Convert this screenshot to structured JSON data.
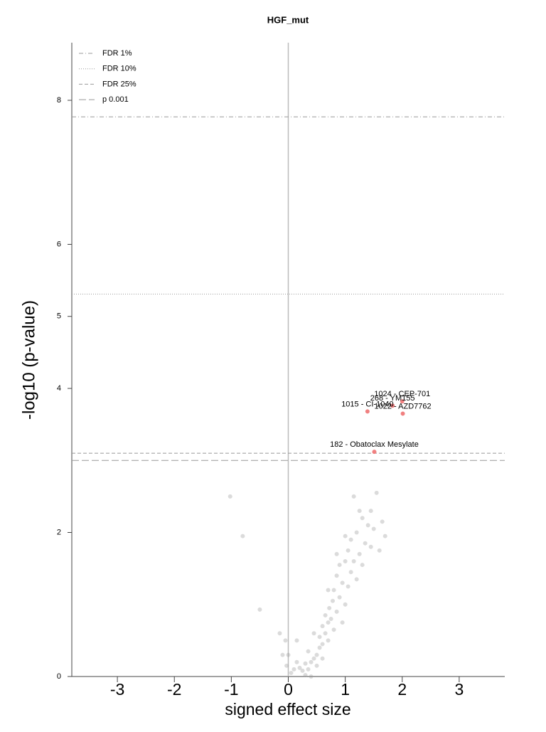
{
  "chart_data": {
    "type": "scatter",
    "title": "HGF_mut",
    "xlabel": "signed effect size",
    "ylabel": "-log10 (p-value)",
    "xlim": [
      -3.8,
      3.8
    ],
    "ylim": [
      0,
      8.8
    ],
    "xticks": [
      -3,
      -2,
      -1,
      0,
      1,
      2,
      3
    ],
    "yticks": [
      0,
      2,
      4,
      5,
      6,
      8
    ],
    "point_color": "#999999",
    "highlight_color": "#f08080",
    "thresholds": [
      {
        "label": "FDR 1%",
        "value": 7.77,
        "dash": "6,3,1,3"
      },
      {
        "label": "FDR 10%",
        "value": 5.31,
        "dash": "1,2"
      },
      {
        "label": "FDR 25%",
        "value": 3.1,
        "dash": "5,3"
      },
      {
        "label": "p 0.001",
        "value": 3.0,
        "dash": "10,4"
      }
    ],
    "highlighted": {
      "labels": [
        "1024 - CEP-701",
        "268 - YM155",
        "1015 - CI-1040",
        "1022 - AZD7762",
        "182 - Obatoclax Mesylate"
      ],
      "x": [
        2.0,
        1.83,
        1.39,
        2.01,
        1.51
      ],
      "y": [
        3.82,
        3.76,
        3.68,
        3.65,
        3.12
      ]
    },
    "points": {
      "x": [
        -1.02,
        -0.8,
        -0.5,
        -0.1,
        -0.05,
        -0.03,
        0.05,
        0.1,
        0.15,
        0.2,
        0.25,
        0.3,
        0.35,
        0.4,
        0.45,
        0.5,
        0.5,
        0.55,
        0.55,
        0.6,
        0.6,
        0.65,
        0.65,
        0.7,
        0.7,
        0.72,
        0.75,
        0.78,
        0.8,
        0.8,
        0.85,
        0.85,
        0.9,
        0.9,
        0.95,
        1.0,
        1.0,
        1.05,
        1.05,
        1.1,
        1.1,
        1.15,
        1.2,
        1.2,
        1.25,
        1.3,
        1.3,
        1.35,
        1.4,
        1.45,
        1.45,
        1.5,
        1.55,
        1.6,
        1.65,
        1.7,
        0.15,
        0.4,
        0.35,
        0.6,
        0.85,
        1.15,
        0.45,
        0.7,
        -0.15,
        0.3,
        0.0,
        1.0,
        0.95,
        1.25
      ],
      "y": [
        2.5,
        1.95,
        0.93,
        0.3,
        0.5,
        0.15,
        0.05,
        0.1,
        0.2,
        0.12,
        0.08,
        0.18,
        0.1,
        0.2,
        0.25,
        0.3,
        0.15,
        0.4,
        0.55,
        0.45,
        0.7,
        0.6,
        0.85,
        0.5,
        0.75,
        0.95,
        0.8,
        1.05,
        0.65,
        1.2,
        0.9,
        1.4,
        1.1,
        1.55,
        1.3,
        1.0,
        1.6,
        1.25,
        1.75,
        1.45,
        1.9,
        1.6,
        2.0,
        1.35,
        1.7,
        2.2,
        1.55,
        1.85,
        2.1,
        1.8,
        2.3,
        2.05,
        2.55,
        1.75,
        2.15,
        1.95,
        0.5,
        0.0,
        0.35,
        0.25,
        1.7,
        2.5,
        0.6,
        1.2,
        0.6,
        0.02,
        0.3,
        1.95,
        0.75,
        2.3
      ]
    }
  }
}
